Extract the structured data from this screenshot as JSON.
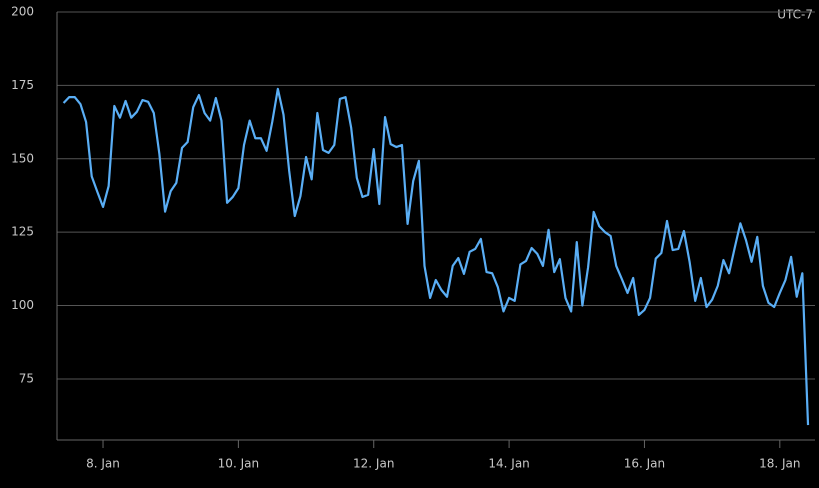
{
  "chart_data": {
    "type": "line",
    "annotation": "UTC-7",
    "x": [
      7.417,
      7.5,
      7.583,
      7.667,
      7.75,
      7.833,
      7.917,
      8,
      8.083,
      8.167,
      8.25,
      8.333,
      8.417,
      8.5,
      8.583,
      8.667,
      8.75,
      8.833,
      8.917,
      9,
      9.083,
      9.167,
      9.25,
      9.333,
      9.417,
      9.5,
      9.583,
      9.667,
      9.75,
      9.833,
      9.917,
      10,
      10.083,
      10.167,
      10.25,
      10.333,
      10.417,
      10.5,
      10.583,
      10.667,
      10.75,
      10.833,
      10.917,
      11,
      11.083,
      11.167,
      11.25,
      11.333,
      11.417,
      11.5,
      11.583,
      11.667,
      11.75,
      11.833,
      11.917,
      12,
      12.083,
      12.167,
      12.25,
      12.333,
      12.417,
      12.5,
      12.583,
      12.667,
      12.75,
      12.833,
      12.917,
      13,
      13.083,
      13.167,
      13.25,
      13.333,
      13.417,
      13.5,
      13.583,
      13.667,
      13.75,
      13.833,
      13.917,
      14,
      14.083,
      14.167,
      14.25,
      14.333,
      14.417,
      14.5,
      14.583,
      14.667,
      14.75,
      14.833,
      14.917,
      15,
      15.083,
      15.167,
      15.25,
      15.333,
      15.417,
      15.5,
      15.583,
      15.667,
      15.75,
      15.833,
      15.917,
      16,
      16.083,
      16.167,
      16.25,
      16.333,
      16.417,
      16.5,
      16.583,
      16.667,
      16.75,
      16.833,
      16.917,
      17,
      17.083,
      17.167,
      17.25,
      17.333,
      17.417,
      17.5,
      17.583,
      17.667,
      17.75,
      17.833,
      17.917,
      18,
      18.083,
      18.167,
      18.25,
      18.333,
      18.417
    ],
    "series": [
      {
        "color": "#5aaef5",
        "values": [
          169,
          171,
          171,
          168.6,
          162.5,
          144,
          138.7,
          133.6,
          140.7,
          168,
          164,
          169.7,
          164,
          166,
          170,
          169.4,
          165.6,
          151.6,
          132,
          139,
          141.8,
          153.7,
          155.7,
          167.6,
          171.7,
          165.6,
          163,
          170.7,
          163,
          135,
          137,
          140,
          154.7,
          163,
          157,
          157,
          152.7,
          162.5,
          173.8,
          165,
          146,
          130.5,
          137.3,
          150.6,
          143,
          165.6,
          153,
          152,
          154.7,
          170.4,
          171,
          160.5,
          143.5,
          137,
          137.7,
          153.3,
          134.6,
          164.2,
          155,
          154,
          154.7,
          127.8,
          142.4,
          149.3,
          113.5,
          102.6,
          108.7,
          105.3,
          103,
          113.5,
          116.2,
          110.8,
          118.3,
          119.3,
          122.7,
          111.4,
          111,
          106.3,
          98,
          102.6,
          101.6,
          114,
          115.2,
          119.6,
          117.6,
          113.5,
          125.8,
          111.4,
          115.8,
          102.6,
          98,
          121.6,
          100,
          113,
          131.9,
          127,
          125,
          123.7,
          113.5,
          109,
          104.3,
          109.4,
          96.8,
          98.5,
          102.6,
          116,
          117.9,
          128.8,
          118.9,
          119.3,
          125.4,
          114.9,
          101.6,
          109.4,
          99.5,
          102,
          106.7,
          115.5,
          111,
          119.6,
          128,
          122.3,
          114.9,
          123.4,
          106.7,
          100.9,
          99.5,
          104.3,
          108.7,
          116.6,
          103,
          111,
          59.3
        ]
      }
    ],
    "xlim": [
      7.32,
      18.52
    ],
    "xticks": [
      {
        "value": 8,
        "label": "8. Jan"
      },
      {
        "value": 10,
        "label": "10. Jan"
      },
      {
        "value": 12,
        "label": "12. Jan"
      },
      {
        "value": 14,
        "label": "14. Jan"
      },
      {
        "value": 16,
        "label": "16. Jan"
      },
      {
        "value": 18,
        "label": "18. Jan"
      }
    ],
    "ylim": [
      54.2,
      200
    ],
    "yticks": [
      75,
      100,
      125,
      150,
      175,
      200
    ],
    "grid": true
  }
}
